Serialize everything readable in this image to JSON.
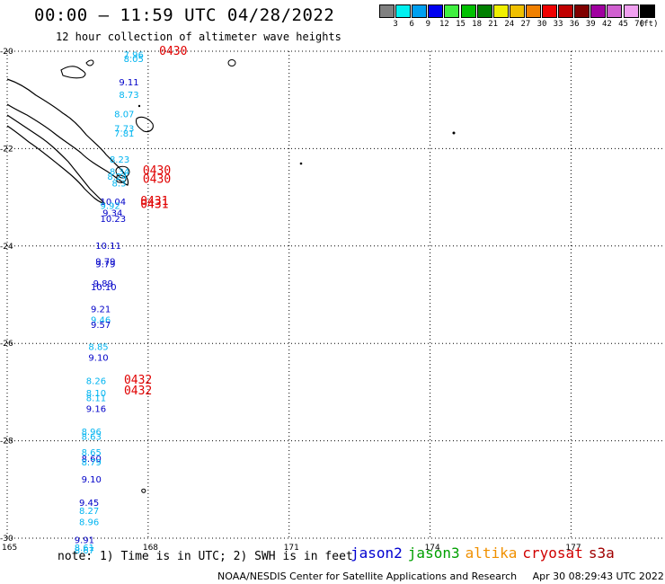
{
  "header": {
    "title": "00:00 – 11:59 UTC 04/28/2022",
    "subtitle": "12 hour collection of altimeter wave heights"
  },
  "legend": {
    "units": "(ft)",
    "items": [
      {
        "color": "#808080",
        "label": "3"
      },
      {
        "color": "#00f0f0",
        "label": "6"
      },
      {
        "color": "#00a0f0",
        "label": "9"
      },
      {
        "color": "#0000f0",
        "label": "12"
      },
      {
        "color": "#40f040",
        "label": "15"
      },
      {
        "color": "#00c000",
        "label": "18"
      },
      {
        "color": "#008000",
        "label": "21"
      },
      {
        "color": "#f0f000",
        "label": "24"
      },
      {
        "color": "#f0c000",
        "label": "27"
      },
      {
        "color": "#f08000",
        "label": "30"
      },
      {
        "color": "#f00000",
        "label": "33"
      },
      {
        "color": "#c00000",
        "label": "36"
      },
      {
        "color": "#800000",
        "label": "39"
      },
      {
        "color": "#a000a0",
        "label": "42"
      },
      {
        "color": "#d060d0",
        "label": "45"
      },
      {
        "color": "#f0a0f0",
        "label": "70"
      },
      {
        "color": "#000000",
        "label": ""
      }
    ]
  },
  "map": {
    "lon_ticks": [
      "165",
      "168",
      "171",
      "174",
      "177"
    ],
    "lat_ticks": [
      "-20",
      "-22",
      "-24",
      "-26",
      "-28",
      "-30"
    ],
    "colors": {
      "cyan": "#00b4f0",
      "blue": "#0000c8",
      "time": "#e00000"
    },
    "measurements": [
      {
        "lat": -20.08,
        "lon": 167.9,
        "value": "7.96",
        "color": "cyan"
      },
      {
        "lat": -20.17,
        "lon": 167.9,
        "value": "8.05",
        "color": "cyan"
      },
      {
        "lat": -20.65,
        "lon": 167.8,
        "value": "9.11",
        "color": "blue"
      },
      {
        "lat": -20.9,
        "lon": 167.8,
        "value": "8.73",
        "color": "cyan"
      },
      {
        "lat": -21.3,
        "lon": 167.7,
        "value": "8.07",
        "color": "cyan"
      },
      {
        "lat": -21.6,
        "lon": 167.7,
        "value": "7.73",
        "color": "cyan"
      },
      {
        "lat": -21.7,
        "lon": 167.7,
        "value": "7.81",
        "color": "cyan"
      },
      {
        "lat": -22.23,
        "lon": 167.6,
        "value": "8.23",
        "color": "cyan"
      },
      {
        "lat": -22.48,
        "lon": 167.6,
        "value": "8.34",
        "color": "cyan"
      },
      {
        "lat": -22.58,
        "lon": 167.55,
        "value": "8.24",
        "color": "cyan"
      },
      {
        "lat": -22.72,
        "lon": 167.65,
        "value": "8.3",
        "color": "cyan"
      },
      {
        "lat": -23.1,
        "lon": 167.4,
        "value": "10.04",
        "color": "blue"
      },
      {
        "lat": -23.18,
        "lon": 167.4,
        "value": "9.92",
        "color": "cyan"
      },
      {
        "lat": -23.33,
        "lon": 167.45,
        "value": "9.34",
        "color": "blue"
      },
      {
        "lat": -23.45,
        "lon": 167.4,
        "value": "10.23",
        "color": "blue"
      },
      {
        "lat": -24.0,
        "lon": 167.3,
        "value": "10.11",
        "color": "blue"
      },
      {
        "lat": -24.33,
        "lon": 167.3,
        "value": "9.79",
        "color": "blue"
      },
      {
        "lat": -24.38,
        "lon": 167.3,
        "value": "9.79",
        "color": "blue"
      },
      {
        "lat": -24.78,
        "lon": 167.25,
        "value": "9.89",
        "color": "blue"
      },
      {
        "lat": -24.85,
        "lon": 167.2,
        "value": "10.10",
        "color": "blue"
      },
      {
        "lat": -25.3,
        "lon": 167.2,
        "value": "9.21",
        "color": "blue"
      },
      {
        "lat": -25.53,
        "lon": 167.2,
        "value": "9.46",
        "color": "cyan"
      },
      {
        "lat": -25.63,
        "lon": 167.2,
        "value": "9.57",
        "color": "blue"
      },
      {
        "lat": -26.08,
        "lon": 167.15,
        "value": "8.85",
        "color": "cyan"
      },
      {
        "lat": -26.3,
        "lon": 167.15,
        "value": "9.10",
        "color": "blue"
      },
      {
        "lat": -26.78,
        "lon": 167.1,
        "value": "8.26",
        "color": "cyan"
      },
      {
        "lat": -27.03,
        "lon": 167.1,
        "value": "8.10",
        "color": "cyan"
      },
      {
        "lat": -27.13,
        "lon": 167.1,
        "value": "8.11",
        "color": "cyan"
      },
      {
        "lat": -27.35,
        "lon": 167.1,
        "value": "9.16",
        "color": "blue"
      },
      {
        "lat": -27.82,
        "lon": 167.0,
        "value": "8.96",
        "color": "cyan"
      },
      {
        "lat": -27.92,
        "lon": 167.0,
        "value": "8.63",
        "color": "cyan"
      },
      {
        "lat": -28.25,
        "lon": 167.0,
        "value": "8.65",
        "color": "cyan"
      },
      {
        "lat": -28.38,
        "lon": 167.0,
        "value": "8.60",
        "color": "blue"
      },
      {
        "lat": -28.45,
        "lon": 167.0,
        "value": "8.79",
        "color": "cyan"
      },
      {
        "lat": -28.8,
        "lon": 167.0,
        "value": "9.10",
        "color": "blue"
      },
      {
        "lat": -29.28,
        "lon": 166.95,
        "value": "9.45",
        "color": "blue"
      },
      {
        "lat": -29.45,
        "lon": 166.95,
        "value": "8.27",
        "color": "cyan"
      },
      {
        "lat": -29.68,
        "lon": 166.95,
        "value": "8.96",
        "color": "cyan"
      },
      {
        "lat": -30.05,
        "lon": 166.85,
        "value": "9.91",
        "color": "blue"
      },
      {
        "lat": -30.2,
        "lon": 166.85,
        "value": "8.61",
        "color": "cyan"
      },
      {
        "lat": -30.26,
        "lon": 166.85,
        "value": "8.67",
        "color": "cyan"
      }
    ],
    "time_labels": [
      {
        "lat": -20.0,
        "lon": 168.35,
        "time": "0430"
      },
      {
        "lat": -22.45,
        "lon": 168.0,
        "time": "0430"
      },
      {
        "lat": -22.63,
        "lon": 168.0,
        "time": "0430"
      },
      {
        "lat": -23.08,
        "lon": 167.95,
        "time": "0431"
      },
      {
        "lat": -23.15,
        "lon": 167.95,
        "time": "0431"
      },
      {
        "lat": -26.75,
        "lon": 167.6,
        "time": "0432"
      },
      {
        "lat": -26.97,
        "lon": 167.6,
        "time": "0432"
      }
    ]
  },
  "footer": {
    "note": "note: 1) Time is in UTC; 2) SWH is in feet",
    "satellites": [
      {
        "name": "jason2",
        "color": "#0000d0"
      },
      {
        "name": "jason3",
        "color": "#00a000"
      },
      {
        "name": "altika",
        "color": "#f09000"
      },
      {
        "name": "cryosat",
        "color": "#d00000"
      },
      {
        "name": "s3a",
        "color": "#a00000"
      }
    ],
    "credit": "NOAA/NESDIS Center for Satellite Applications and Research",
    "timestamp": "Apr 30 08:29:43 UTC 2022"
  }
}
